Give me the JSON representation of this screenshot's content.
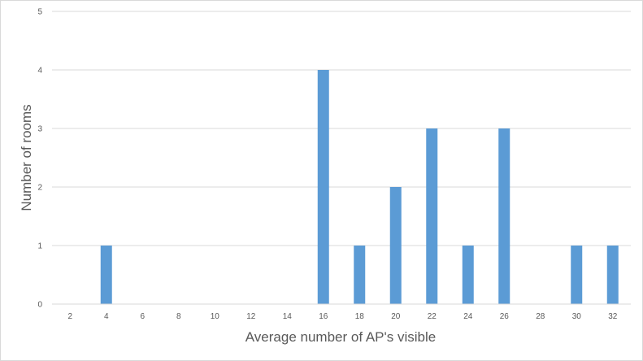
{
  "chart_data": {
    "type": "bar",
    "title": "",
    "xlabel": "Average number of AP's visible",
    "ylabel": "Number of rooms",
    "categories": [
      "2",
      "4",
      "6",
      "8",
      "10",
      "12",
      "14",
      "16",
      "18",
      "20",
      "22",
      "24",
      "26",
      "28",
      "30",
      "32"
    ],
    "values": [
      0,
      1,
      0,
      0,
      0,
      0,
      0,
      4,
      1,
      2,
      3,
      1,
      3,
      0,
      1,
      1
    ],
    "y_ticks": [
      "0",
      "1",
      "2",
      "3",
      "4",
      "5"
    ],
    "ylim": [
      0,
      5
    ],
    "grid": true,
    "bar_color": "#5b9bd5",
    "grid_color": "#d9d9d9",
    "axis_color": "#d9d9d9",
    "text_color": "#595959"
  }
}
